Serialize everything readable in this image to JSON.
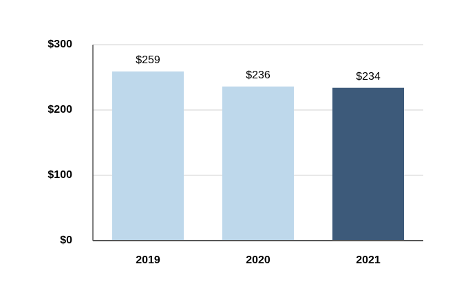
{
  "chart_data": {
    "type": "bar",
    "categories": [
      "2019",
      "2020",
      "2021"
    ],
    "values": [
      259,
      236,
      234
    ],
    "value_labels": [
      "$259",
      "$236",
      "$234"
    ],
    "colors": [
      "#bed8eb",
      "#bed8eb",
      "#3d5a7a"
    ],
    "ylim": [
      0,
      300
    ],
    "yticks": [
      {
        "value": 0,
        "label": "$0"
      },
      {
        "value": 100,
        "label": "$100"
      },
      {
        "value": 200,
        "label": "$200"
      },
      {
        "value": 300,
        "label": "$300"
      }
    ],
    "grid": true
  }
}
